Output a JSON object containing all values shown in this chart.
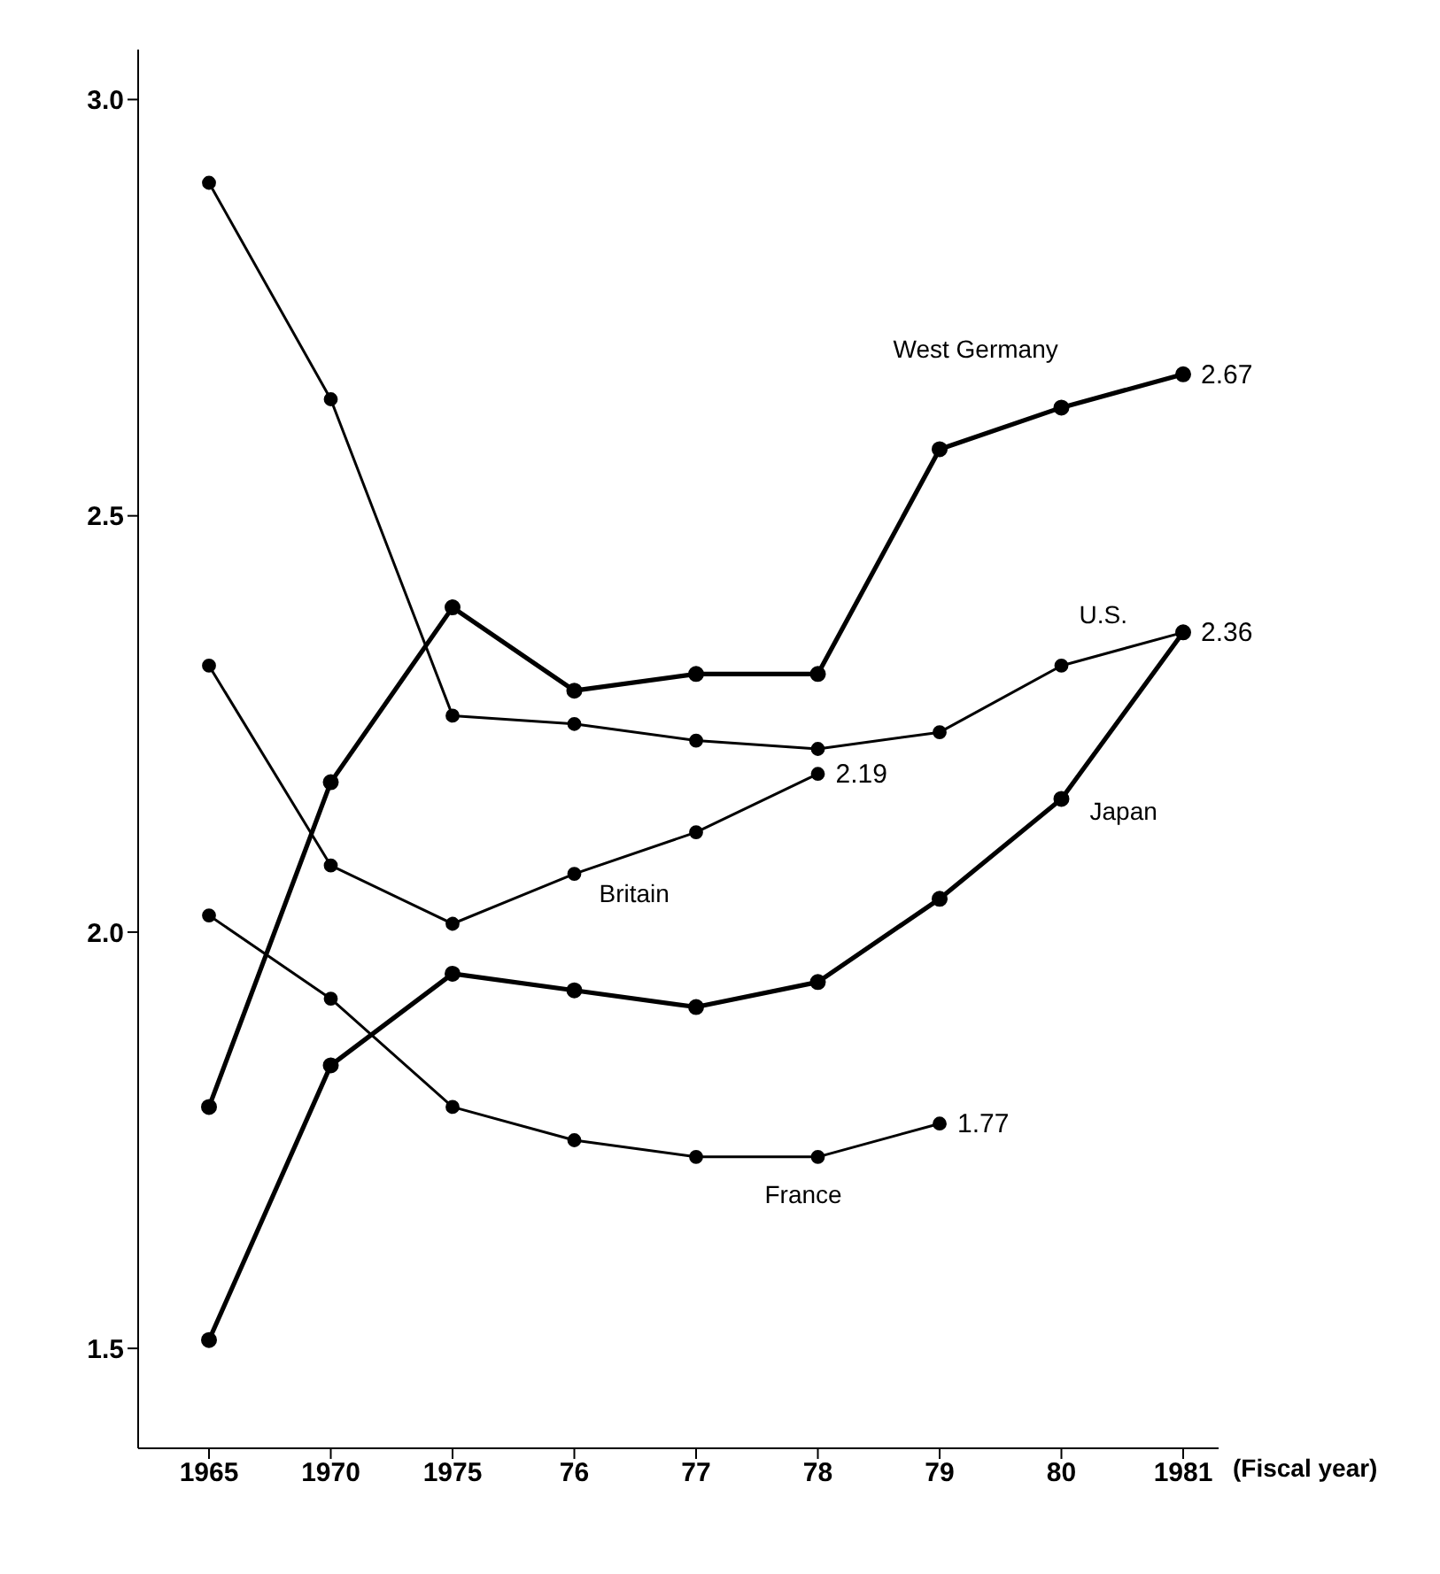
{
  "chart_data": {
    "type": "line",
    "xlabel": "(Fiscal year)",
    "categories": [
      "1965",
      "1970",
      "1975",
      "76",
      "77",
      "78",
      "79",
      "80",
      "1981"
    ],
    "series": [
      {
        "name": "West Germany",
        "color": "#000000",
        "values": [
          1.79,
          2.18,
          2.39,
          2.29,
          2.31,
          2.31,
          2.58,
          2.63,
          2.67
        ],
        "value_labels": [
          null,
          null,
          null,
          null,
          null,
          null,
          null,
          null,
          "2.67"
        ]
      },
      {
        "name": "U.S.",
        "color": "#000000",
        "values": [
          2.9,
          2.64,
          2.26,
          2.25,
          2.23,
          2.22,
          2.24,
          2.32,
          2.36
        ],
        "value_labels": [
          null,
          null,
          null,
          null,
          null,
          null,
          null,
          null,
          "2.36"
        ]
      },
      {
        "name": "Japan",
        "color": "#000000",
        "values": [
          1.51,
          1.84,
          1.95,
          1.93,
          1.91,
          1.94,
          2.04,
          2.16,
          2.36
        ]
      },
      {
        "name": "Britain",
        "color": "#000000",
        "values": [
          2.32,
          2.08,
          2.01,
          2.07,
          2.12,
          2.19,
          null,
          null,
          null
        ],
        "value_labels": [
          null,
          null,
          null,
          null,
          null,
          "2.19",
          null,
          null,
          null
        ]
      },
      {
        "name": "France",
        "color": "#000000",
        "values": [
          2.02,
          1.92,
          1.79,
          1.75,
          1.73,
          1.73,
          1.77,
          null,
          null
        ],
        "value_labels": [
          null,
          null,
          null,
          null,
          null,
          null,
          "1.77",
          null,
          null
        ]
      }
    ],
    "ylim": [
      1.38,
      3.06
    ],
    "yticks": [
      {
        "value": 1.5,
        "label": "1.5"
      },
      {
        "value": 2,
        "label": "2.0"
      },
      {
        "value": 2.5,
        "label": "2.5"
      },
      {
        "value": 3,
        "label": "3.0"
      }
    ],
    "grid": false,
    "legend": false,
    "marker": "circle",
    "line_style": "solid"
  }
}
